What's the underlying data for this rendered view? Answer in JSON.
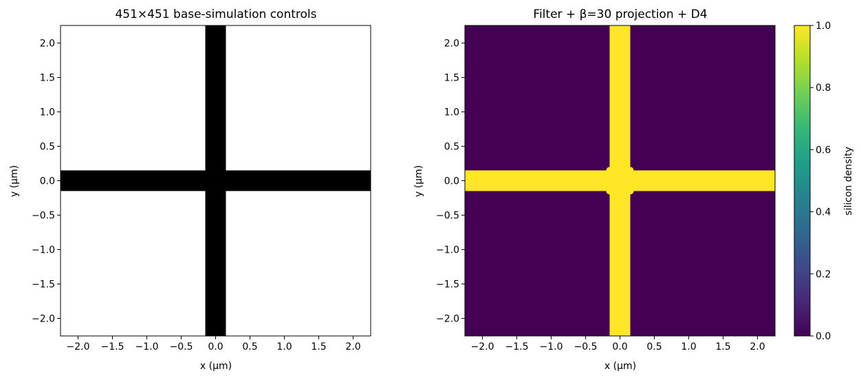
{
  "chart_data": [
    {
      "type": "heatmap",
      "title": "451×451 base-simulation controls",
      "xlabel": "x (μm)",
      "ylabel": "y (μm)",
      "xlim": [
        -2.255,
        2.255
      ],
      "ylim": [
        -2.255,
        2.255
      ],
      "xticks": [
        -2.0,
        -1.5,
        -1.0,
        -0.5,
        0.0,
        0.5,
        1.0,
        1.5,
        2.0
      ],
      "yticks": [
        -2.0,
        -1.5,
        -1.0,
        -0.5,
        0.0,
        0.5,
        1.0,
        1.5,
        2.0
      ],
      "xticklabels": [
        "−2.0",
        "−1.5",
        "−1.0",
        "−0.5",
        "0.0",
        "0.5",
        "1.0",
        "1.5",
        "2.0"
      ],
      "yticklabels": [
        "−2.0",
        "−1.5",
        "−1.0",
        "−0.5",
        "0.0",
        "0.5",
        "1.0",
        "1.5",
        "2.0"
      ],
      "colormap": "binary",
      "background_value_color": "#ffffff",
      "feature_color": "#000000",
      "features": [
        {
          "shape": "horizontal-bar",
          "x": [
            -2.255,
            2.255
          ],
          "y": [
            -0.15,
            0.15
          ],
          "value": 1
        },
        {
          "shape": "vertical-bar",
          "x": [
            -0.15,
            0.15
          ],
          "y": [
            -2.255,
            2.255
          ],
          "value": 1
        }
      ],
      "grid": false,
      "colorbar": false
    },
    {
      "type": "heatmap",
      "title": "Filter + β=30 projection + D4",
      "xlabel": "x (μm)",
      "ylabel": "y (μm)",
      "xlim": [
        -2.255,
        2.255
      ],
      "ylim": [
        -2.255,
        2.255
      ],
      "xticks": [
        -2.0,
        -1.5,
        -1.0,
        -0.5,
        0.0,
        0.5,
        1.0,
        1.5,
        2.0
      ],
      "yticks": [
        -2.0,
        -1.5,
        -1.0,
        -0.5,
        0.0,
        0.5,
        1.0,
        1.5,
        2.0
      ],
      "xticklabels": [
        "−2.0",
        "−1.5",
        "−1.0",
        "−0.5",
        "0.0",
        "0.5",
        "1.0",
        "1.5",
        "2.0"
      ],
      "yticklabels": [
        "−2.0",
        "−1.5",
        "−1.0",
        "−0.5",
        "0.0",
        "0.5",
        "1.0",
        "1.5",
        "2.0"
      ],
      "colormap": "viridis",
      "background_value": 0.0,
      "background_value_color": "#440154",
      "feature_color": "#fde725",
      "features": [
        {
          "shape": "horizontal-bar",
          "x": [
            -2.255,
            2.255
          ],
          "y": [
            -0.15,
            0.15
          ],
          "value": 1.0
        },
        {
          "shape": "vertical-bar",
          "x": [
            -0.15,
            0.15
          ],
          "y": [
            -2.255,
            2.255
          ],
          "value": 1.0
        }
      ],
      "corner_fillet_radius": 0.05,
      "grid": false,
      "colorbar": {
        "label": "silicon density",
        "range": [
          0.0,
          1.0
        ],
        "ticks": [
          0.0,
          0.2,
          0.4,
          0.6,
          0.8,
          1.0
        ],
        "ticklabels": [
          "0.0",
          "0.2",
          "0.4",
          "0.6",
          "0.8",
          "1.0"
        ],
        "colors": [
          "#440154",
          "#482878",
          "#3e4989",
          "#31688e",
          "#26828e",
          "#1f9e89",
          "#35b779",
          "#6ece58",
          "#b5de2b",
          "#fde725"
        ]
      }
    }
  ]
}
